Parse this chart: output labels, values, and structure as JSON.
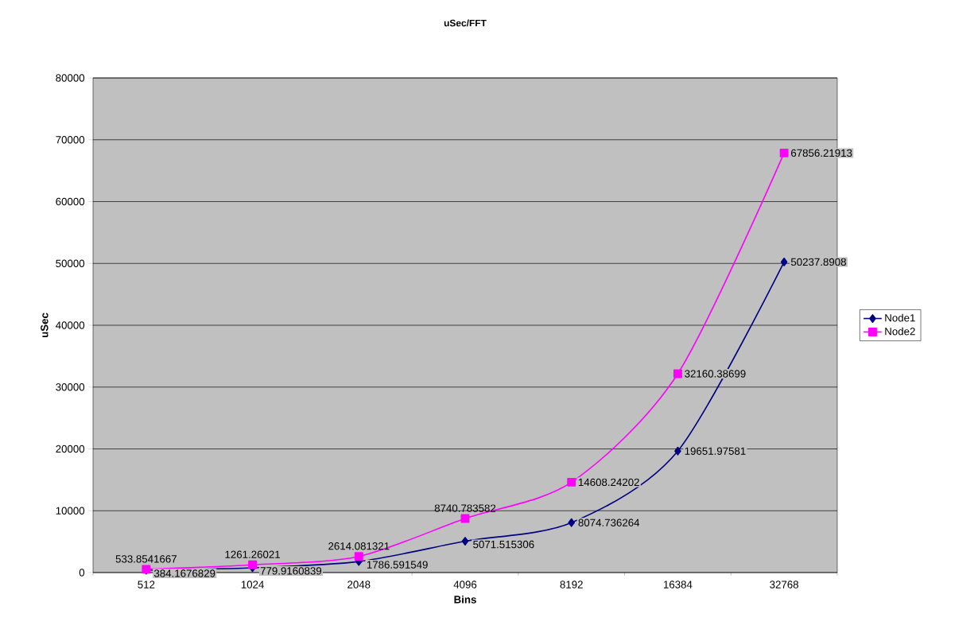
{
  "chart_data": {
    "type": "line",
    "title": "uSec/FFT",
    "xlabel": "Bins",
    "ylabel": "uSec",
    "categories": [
      "512",
      "1024",
      "2048",
      "4096",
      "8192",
      "16384",
      "32768"
    ],
    "series": [
      {
        "name": "Node1",
        "color": "#000080",
        "marker": "diamond",
        "values": [
          384.1676829,
          779.9160839,
          1786.591549,
          5071.515306,
          8074.736264,
          19651.97581,
          50237.8908
        ]
      },
      {
        "name": "Node2",
        "color": "#ff00ff",
        "marker": "square",
        "values": [
          533.8541667,
          1261.26021,
          2614.081321,
          8740.783582,
          14608.24202,
          32160.38699,
          67856.21913
        ]
      }
    ],
    "ylim": [
      0,
      80000
    ],
    "yticks": [
      0,
      10000,
      20000,
      30000,
      40000,
      50000,
      60000,
      70000,
      80000
    ],
    "grid": "y",
    "legend": "right",
    "data_labels": true
  }
}
